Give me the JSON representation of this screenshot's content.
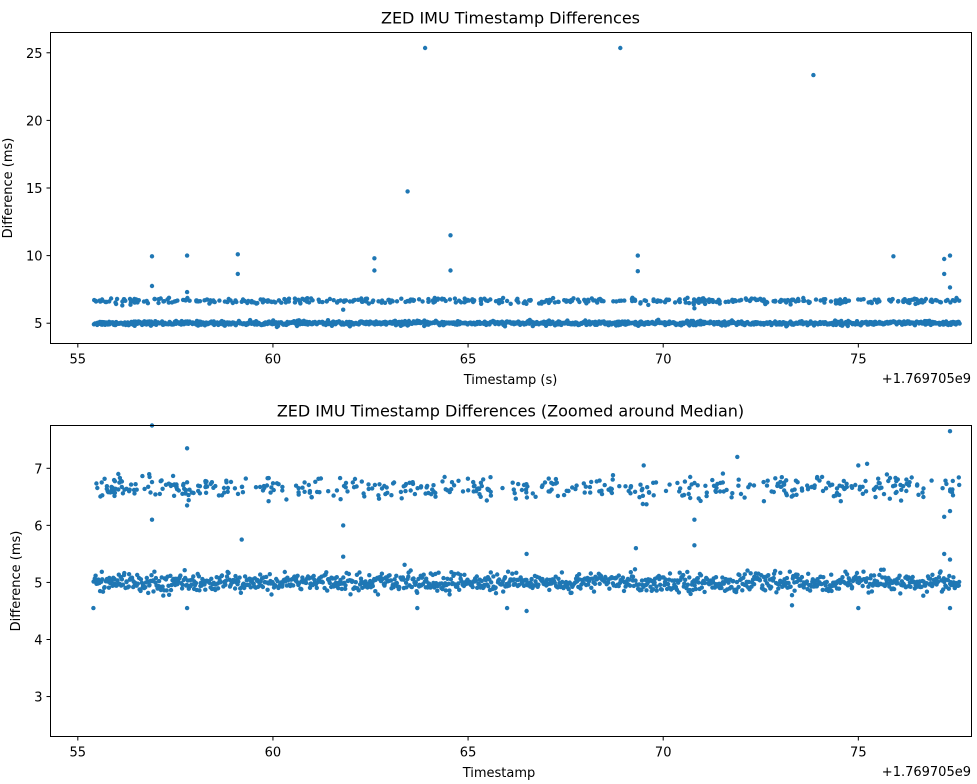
{
  "chart_data": [
    {
      "type": "scatter",
      "title": "ZED IMU Timestamp Differences",
      "xlabel": "Timestamp (s)",
      "ylabel": "Difference (ms)",
      "x_offset_label": "+1.769705e9",
      "xlim": [
        54.3,
        77.9
      ],
      "ylim": [
        3.5,
        26.5
      ],
      "xticks": [
        55,
        60,
        65,
        70,
        75
      ],
      "yticks": [
        5,
        10,
        15,
        20,
        25
      ],
      "x_range": [
        55.4,
        77.6
      ],
      "point_color": "#1f77b4",
      "cluster_main": {
        "center": 5.0,
        "spread": 0.1
      },
      "cluster_upper": {
        "center": 6.65,
        "spread": 0.1
      },
      "outliers": [
        {
          "x": 56.9,
          "y": 9.95
        },
        {
          "x": 56.9,
          "y": 7.75
        },
        {
          "x": 57.8,
          "y": 10.0
        },
        {
          "x": 57.8,
          "y": 7.3
        },
        {
          "x": 59.1,
          "y": 10.1
        },
        {
          "x": 59.1,
          "y": 8.65
        },
        {
          "x": 62.6,
          "y": 9.8
        },
        {
          "x": 62.6,
          "y": 8.9
        },
        {
          "x": 63.45,
          "y": 14.75
        },
        {
          "x": 63.9,
          "y": 25.35
        },
        {
          "x": 64.55,
          "y": 11.5
        },
        {
          "x": 64.55,
          "y": 8.9
        },
        {
          "x": 68.9,
          "y": 25.35
        },
        {
          "x": 69.35,
          "y": 10.0
        },
        {
          "x": 69.35,
          "y": 8.85
        },
        {
          "x": 73.85,
          "y": 23.35
        },
        {
          "x": 75.9,
          "y": 9.95
        },
        {
          "x": 77.2,
          "y": 9.75
        },
        {
          "x": 77.35,
          "y": 10.0
        },
        {
          "x": 77.2,
          "y": 8.65
        },
        {
          "x": 77.35,
          "y": 7.65
        },
        {
          "x": 61.8,
          "y": 6.0
        },
        {
          "x": 70.8,
          "y": 6.1
        }
      ]
    },
    {
      "type": "scatter",
      "title": "ZED IMU Timestamp Differences (Zoomed around Median)",
      "xlabel": "Timestamp",
      "ylabel": "Difference (ms)",
      "x_offset_label": "+1.769705e9",
      "xlim": [
        54.3,
        77.9
      ],
      "ylim": [
        2.3,
        7.75
      ],
      "xticks": [
        55,
        60,
        65,
        70,
        75
      ],
      "yticks": [
        3,
        4,
        5,
        6,
        7
      ],
      "x_range": [
        55.4,
        77.6
      ],
      "point_color": "#1f77b4",
      "cluster_main": {
        "center": 5.0,
        "spread": 0.1
      },
      "cluster_upper": {
        "center": 6.65,
        "spread": 0.1
      },
      "outliers": [
        {
          "x": 56.9,
          "y": 7.75
        },
        {
          "x": 57.8,
          "y": 7.35
        },
        {
          "x": 77.35,
          "y": 7.65
        },
        {
          "x": 56.9,
          "y": 6.1
        },
        {
          "x": 57.8,
          "y": 6.35
        },
        {
          "x": 59.2,
          "y": 5.75
        },
        {
          "x": 61.8,
          "y": 6.0
        },
        {
          "x": 61.8,
          "y": 5.45
        },
        {
          "x": 70.8,
          "y": 6.1
        },
        {
          "x": 70.8,
          "y": 5.65
        },
        {
          "x": 71.9,
          "y": 7.2
        },
        {
          "x": 75.0,
          "y": 7.05
        },
        {
          "x": 55.4,
          "y": 4.55
        },
        {
          "x": 57.8,
          "y": 4.55
        },
        {
          "x": 63.7,
          "y": 4.55
        },
        {
          "x": 66.0,
          "y": 4.55
        },
        {
          "x": 66.5,
          "y": 4.5
        },
        {
          "x": 73.3,
          "y": 4.6
        },
        {
          "x": 75.0,
          "y": 4.55
        },
        {
          "x": 77.35,
          "y": 4.55
        },
        {
          "x": 69.5,
          "y": 7.05
        },
        {
          "x": 77.2,
          "y": 6.15
        },
        {
          "x": 77.35,
          "y": 6.25
        },
        {
          "x": 77.2,
          "y": 5.5
        },
        {
          "x": 77.35,
          "y": 5.4
        },
        {
          "x": 66.5,
          "y": 5.5
        },
        {
          "x": 69.3,
          "y": 5.6
        }
      ]
    }
  ]
}
